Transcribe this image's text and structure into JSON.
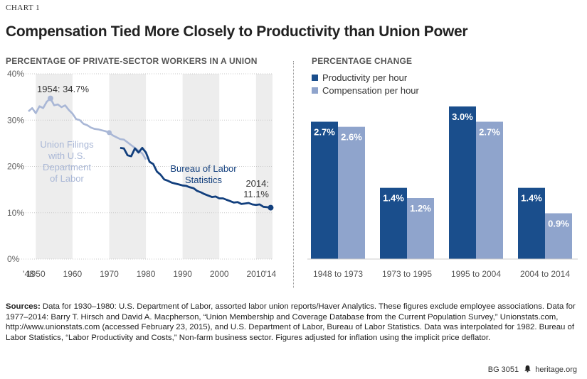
{
  "header": {
    "chart_label": "CHART 1",
    "title": "Compensation Tied More Closely to Productivity than Union Power"
  },
  "left_panel": {
    "title": "PERCENTAGE OF PRIVATE-SECTOR WORKERS IN A UNION"
  },
  "right_panel": {
    "title": "PERCENTAGE CHANGE"
  },
  "colors": {
    "productivity": "#1a4e8c",
    "compensation": "#8fa4cc",
    "union_filings": "#a9b7d6",
    "bls": "#123f7d",
    "band": "#ededed"
  },
  "chart_data": [
    {
      "type": "line",
      "title": "PERCENTAGE OF PRIVATE-SECTOR WORKERS IN A UNION",
      "ylim": [
        0,
        40
      ],
      "xlim": [
        1948,
        2014.5
      ],
      "y_ticks": [
        "0%",
        "10%",
        "20%",
        "30%",
        "40%"
      ],
      "y_tick_values": [
        0,
        10,
        20,
        30,
        40
      ],
      "x_ticks": [
        "'48",
        "1950",
        "1960",
        "1970",
        "1980",
        "1990",
        "2000",
        "2010",
        "'14"
      ],
      "x_tick_values": [
        1948,
        1950,
        1960,
        1970,
        1980,
        1990,
        2000,
        2010,
        2014
      ],
      "grid": "horizontal",
      "series": [
        {
          "name": "Union Filings with U.S. Department of Labor",
          "label_lines": [
            "Union Filings",
            "with U.S.",
            "Department",
            "of Labor"
          ],
          "x": [
            1948,
            1949,
            1950,
            1951,
            1952,
            1953,
            1954,
            1955,
            1956,
            1957,
            1958,
            1959,
            1960,
            1961,
            1962,
            1963,
            1964,
            1965,
            1966,
            1967,
            1968,
            1969,
            1970,
            1971,
            1972,
            1973,
            1974,
            1975,
            1976,
            1977,
            1978,
            1979,
            1980
          ],
          "y": [
            31.9,
            32.6,
            31.5,
            33.0,
            32.6,
            34.0,
            34.7,
            33.2,
            33.4,
            32.8,
            33.2,
            32.2,
            31.4,
            30.2,
            30.0,
            29.2,
            28.9,
            28.4,
            28.1,
            28.0,
            27.8,
            27.6,
            27.3,
            26.7,
            26.3,
            25.9,
            25.8,
            25.2,
            24.6,
            24.0,
            23.4,
            22.8,
            21.5
          ]
        },
        {
          "name": "Bureau of Labor Statistics",
          "label_lines": [
            "Bureau of Labor",
            "Statistics"
          ],
          "x": [
            1973,
            1974,
            1975,
            1976,
            1977,
            1978,
            1979,
            1980,
            1981,
            1982,
            1983,
            1984,
            1985,
            1986,
            1987,
            1988,
            1989,
            1990,
            1991,
            1992,
            1993,
            1994,
            1995,
            1996,
            1997,
            1998,
            1999,
            2000,
            2001,
            2002,
            2003,
            2004,
            2005,
            2006,
            2007,
            2008,
            2009,
            2010,
            2011,
            2012,
            2013,
            2014
          ],
          "y": [
            24.0,
            23.9,
            22.4,
            22.2,
            23.9,
            23.0,
            24.0,
            23.0,
            21.0,
            20.5,
            18.9,
            18.2,
            17.2,
            16.9,
            16.5,
            16.3,
            16.1,
            15.9,
            15.8,
            15.5,
            15.3,
            14.7,
            14.4,
            14.0,
            13.7,
            13.4,
            13.5,
            13.1,
            13.1,
            12.8,
            12.5,
            12.2,
            12.3,
            11.9,
            12.0,
            12.1,
            11.8,
            11.7,
            11.8,
            11.3,
            11.2,
            11.1
          ]
        }
      ],
      "annotations": [
        {
          "text": "1954: 34.7%",
          "x": 1954,
          "y": 34.7
        },
        {
          "text": "2014:",
          "x": 2014,
          "y": 11.1
        },
        {
          "text": "11.1%",
          "x": 2014,
          "y": 11.1
        }
      ]
    },
    {
      "type": "bar",
      "title": "PERCENTAGE CHANGE",
      "categories": [
        "1948 to 1973",
        "1973 to 1995",
        "1995 to 2004",
        "2004 to 2014"
      ],
      "series": [
        {
          "name": "Productivity per hour",
          "values": [
            2.7,
            1.4,
            3.0,
            1.4
          ],
          "labels": [
            "2.7%",
            "1.4%",
            "3.0%",
            "1.4%"
          ]
        },
        {
          "name": "Compensation per hour",
          "values": [
            2.6,
            1.2,
            2.7,
            0.9
          ],
          "labels": [
            "2.6%",
            "1.2%",
            "2.7%",
            "0.9%"
          ]
        }
      ],
      "ylim": [
        0,
        3.0
      ],
      "legend": "top-left"
    }
  ],
  "sources": {
    "label": "Sources:",
    "text": " Data for 1930–1980: U.S. Department of Labor, assorted labor union reports/Haver Analytics. These figures exclude employee associations. Data for 1977–2014: Barry T. Hirsch and David A. Macpherson, “Union Membership and Coverage Database from the Current Population Survey,” Unionstats.com, http://www.unionstats.com (accessed February 23, 2015), and U.S. Department of Labor, Bureau of Labor Statistics. Data was interpolated for 1982. Bureau of Labor Statistics, “Labor Productivity and Costs,” Non-farm business sector. Figures adjusted for inflation using the implicit price deflator."
  },
  "footer": {
    "id": "BG 3051",
    "icon": "liberty-bell-icon",
    "site": "heritage.org"
  }
}
